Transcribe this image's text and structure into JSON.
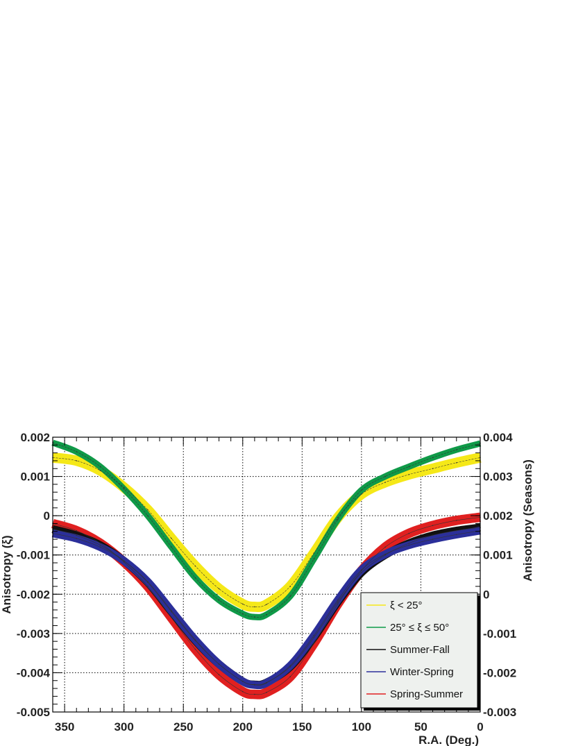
{
  "chart_data": {
    "type": "line",
    "xlabel": "R.A. (Deg.)",
    "ylabel_left": "Anisotropy (ξ)",
    "ylabel_right": "Anisotropy (Seasons)",
    "xlim": [
      360,
      0
    ],
    "ylim_left": [
      -0.005,
      0.002
    ],
    "ylim_right": [
      -0.003,
      0.004
    ],
    "x_ticks": [
      "350",
      "300",
      "250",
      "200",
      "150",
      "100",
      "50",
      "0"
    ],
    "y_ticks_left": [
      "0.002",
      "0.001",
      "0",
      "-0.001",
      "-0.002",
      "-0.003",
      "-0.004",
      "-0.005"
    ],
    "y_ticks_right": [
      "0.004",
      "0.003",
      "0.002",
      "0.001",
      "0",
      "-0.001",
      "-0.002",
      "-0.003"
    ],
    "grid": true,
    "legend_position": "bottom-right",
    "x": [
      360,
      340,
      320,
      300,
      280,
      260,
      240,
      220,
      200,
      190,
      180,
      160,
      140,
      120,
      100,
      80,
      60,
      40,
      20,
      0
    ],
    "series": [
      {
        "name": "ξ < 25°",
        "axis": "left",
        "color": "#f5e818",
        "values": [
          0.00148,
          0.0014,
          0.00115,
          0.00072,
          0.00015,
          -0.00058,
          -0.00128,
          -0.00186,
          -0.00225,
          -0.00232,
          -0.00226,
          -0.0018,
          -0.00095,
          -5e-05,
          0.00055,
          0.00085,
          0.00105,
          0.0012,
          0.00135,
          0.00148
        ],
        "band": 0.00013
      },
      {
        "name": "25° ≤ ξ ≤ 50°",
        "axis": "left",
        "color": "#0f9a48",
        "values": [
          0.00186,
          0.00163,
          0.00125,
          0.00068,
          0.0,
          -0.0008,
          -0.00158,
          -0.00215,
          -0.0025,
          -0.00258,
          -0.00252,
          -0.00205,
          -0.0011,
          -0.0001,
          0.00065,
          0.001,
          0.00125,
          0.00148,
          0.00168,
          0.00184
        ],
        "band": 8e-05
      },
      {
        "name": "Summer-Fall",
        "axis": "right",
        "color": "#111111",
        "values": [
          0.00166,
          0.0015,
          0.00125,
          0.00085,
          0.0003,
          -0.00045,
          -0.00118,
          -0.00178,
          -0.00222,
          -0.0023,
          -0.00225,
          -0.00185,
          -0.0011,
          -0.0002,
          0.00055,
          0.001,
          0.0013,
          0.0015,
          0.00162,
          0.0017
        ],
        "band": 0.0001
      },
      {
        "name": "Winter-Spring",
        "axis": "right",
        "color": "#2b2f9a",
        "values": [
          0.00155,
          0.00142,
          0.0012,
          0.00085,
          0.00032,
          -0.00042,
          -0.00116,
          -0.00178,
          -0.00222,
          -0.00231,
          -0.00226,
          -0.00182,
          -0.00105,
          -0.00015,
          0.00062,
          0.00102,
          0.00125,
          0.0014,
          0.00152,
          0.00162
        ],
        "band": 0.0001
      },
      {
        "name": "Spring-Summer",
        "axis": "right",
        "color": "#e02020",
        "values": [
          0.0018,
          0.00162,
          0.0013,
          0.00082,
          0.0002,
          -0.0006,
          -0.0014,
          -0.00205,
          -0.00248,
          -0.00255,
          -0.0025,
          -0.0021,
          -0.00125,
          -0.00025,
          0.0006,
          0.0012,
          0.00155,
          0.00175,
          0.00188,
          0.00196
        ],
        "band": 0.00012
      }
    ]
  }
}
